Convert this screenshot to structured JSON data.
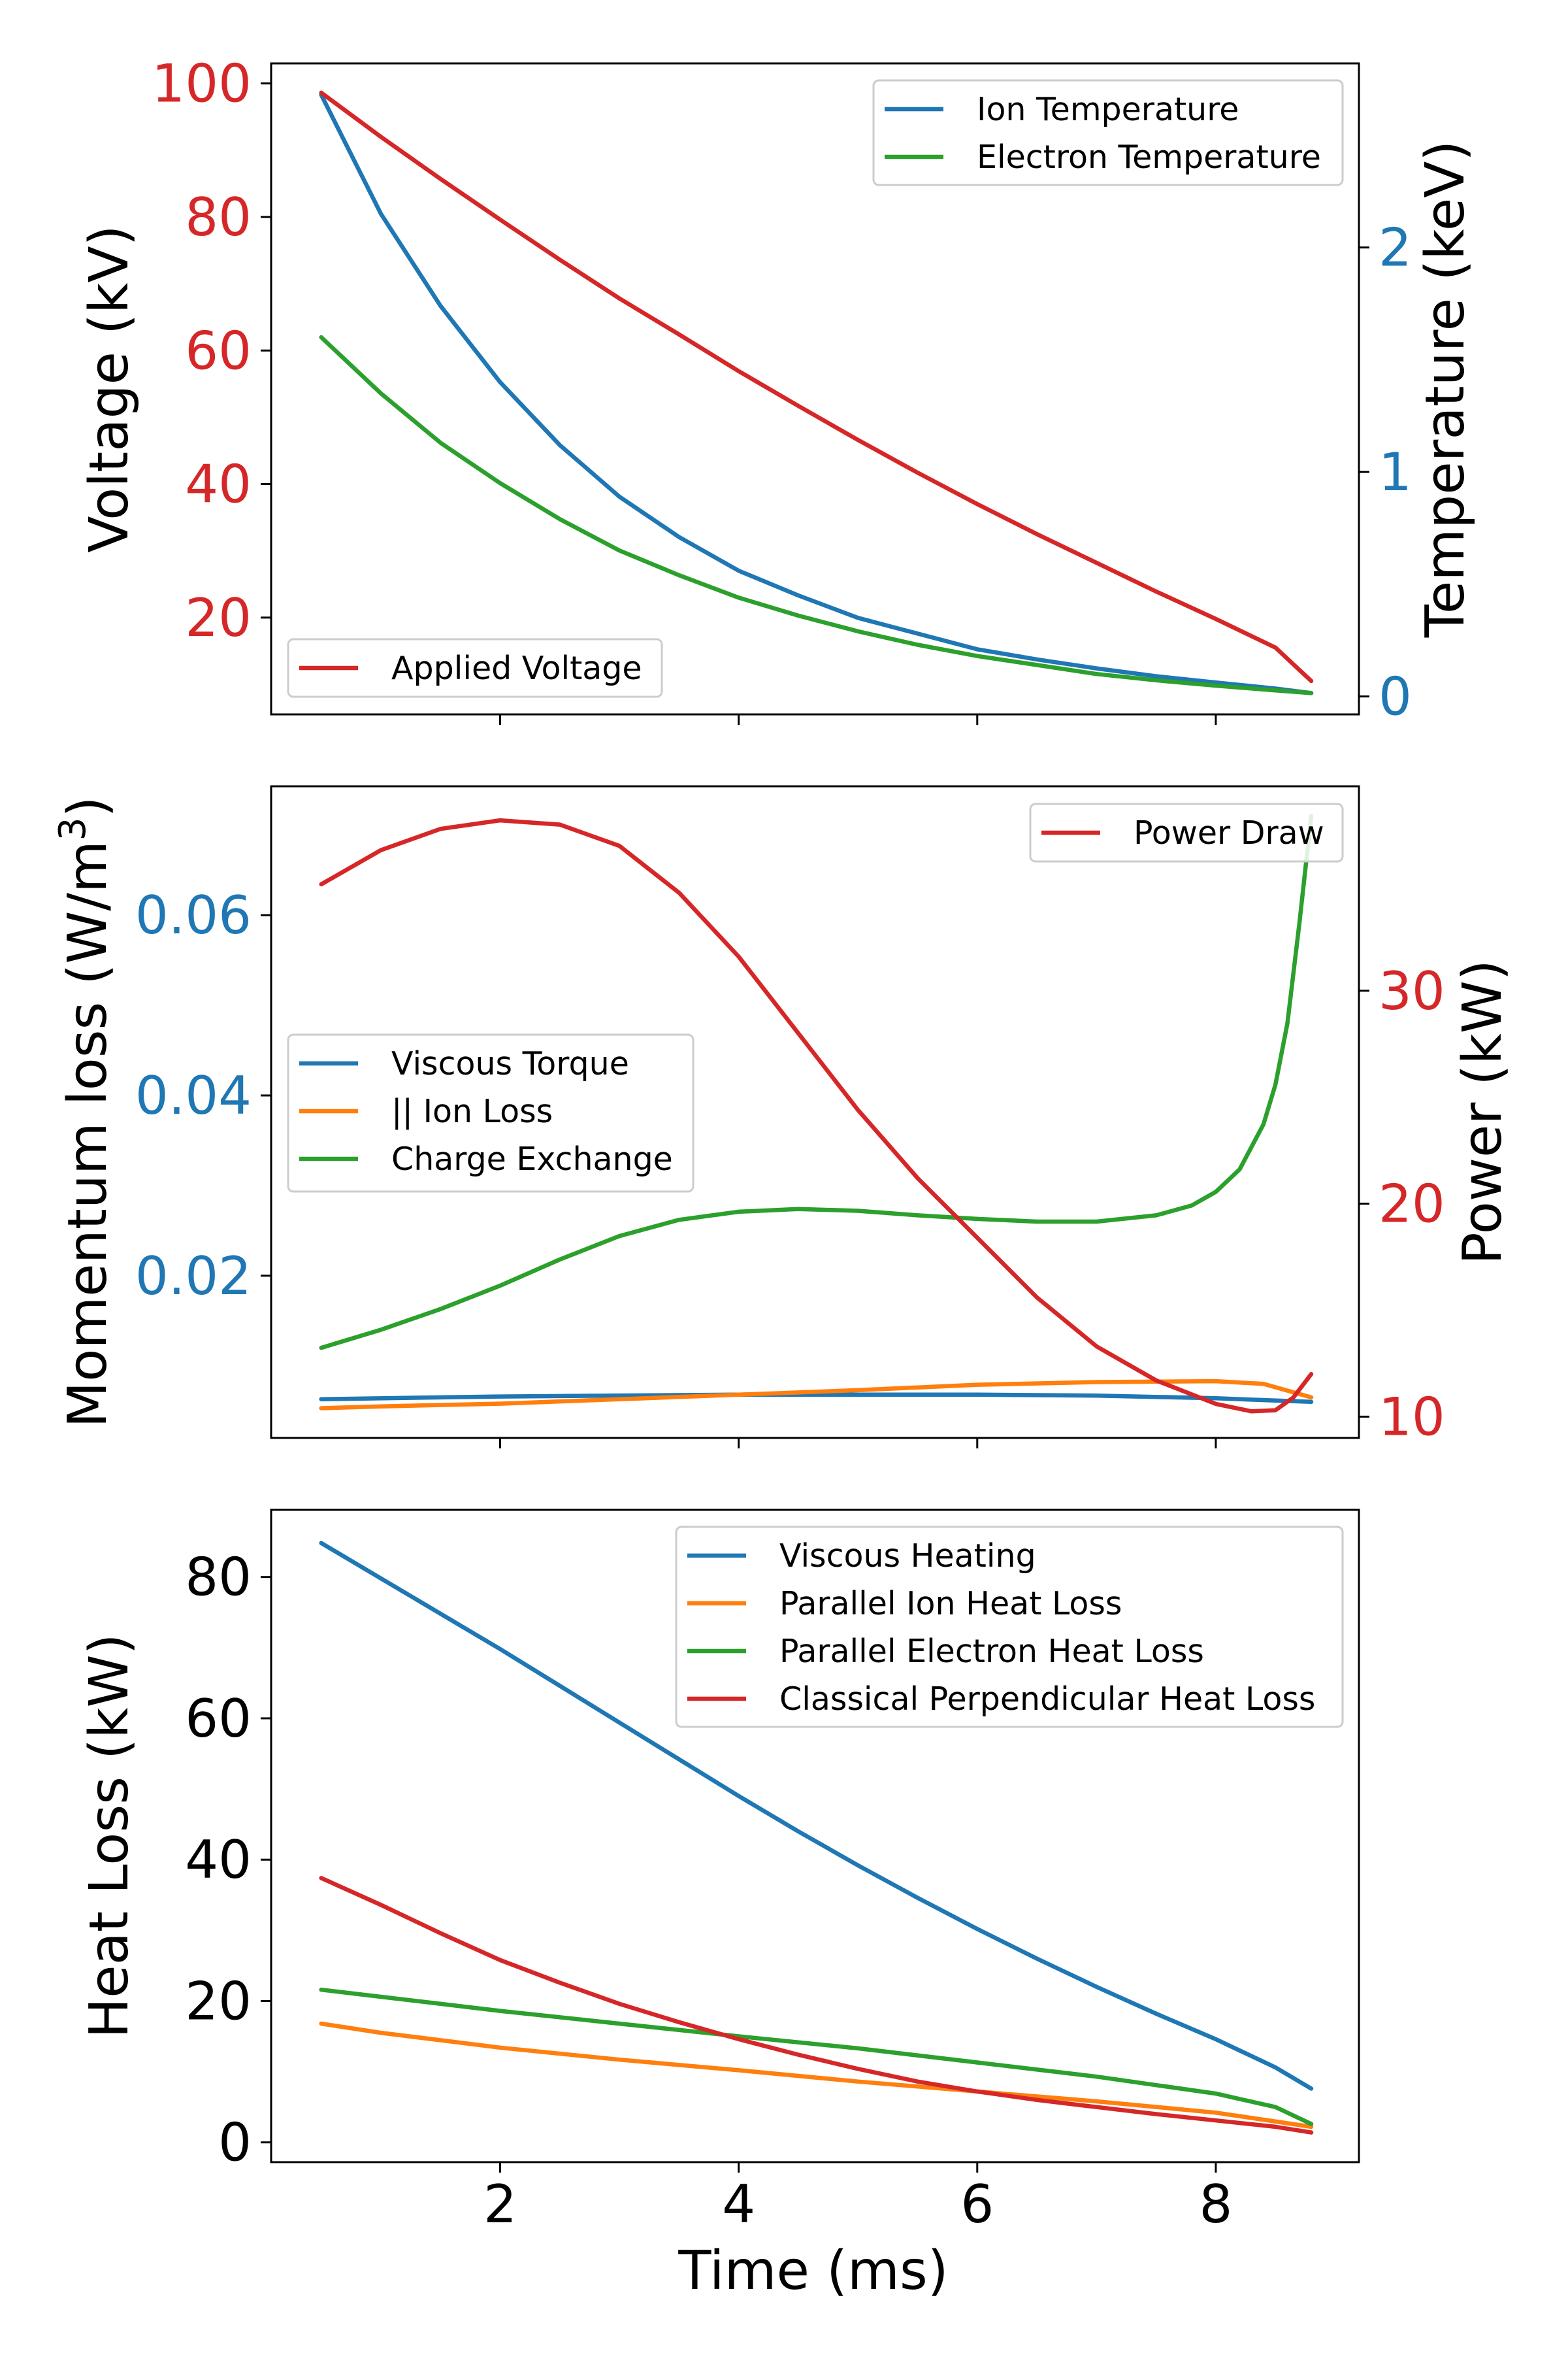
{
  "figure": {
    "xlabel": "Time (ms)",
    "xticks": [
      2,
      4,
      6,
      8
    ],
    "xlim": [
      0.08,
      9.2
    ]
  },
  "colors": {
    "blue": "#1f77b4",
    "orange": "#ff7f0e",
    "green": "#2ca02c",
    "red": "#d62728",
    "black": "#000000"
  },
  "chart_data": [
    {
      "type": "line",
      "left_axis": {
        "label": "Voltage (kV)",
        "ticks": [
          20,
          40,
          60,
          80,
          100
        ],
        "ylim": [
          5.5,
          103
        ],
        "tick_color": "red"
      },
      "right_axis": {
        "label": "Temperature (keV)",
        "ticks": [
          0,
          1,
          2
        ],
        "ylim": [
          -0.08,
          2.82
        ],
        "tick_color": "blue"
      },
      "legends": [
        {
          "position": "upper-right",
          "entries": [
            "Ion Temperature",
            "Electron Temperature"
          ]
        },
        {
          "position": "lower-left",
          "entries": [
            "Applied Voltage"
          ]
        }
      ],
      "series": [
        {
          "name": "Ion Temperature",
          "axis": "right",
          "color": "blue",
          "x": [
            0.5,
            1,
            1.5,
            2,
            2.5,
            3,
            3.5,
            4,
            4.5,
            5,
            5.5,
            6,
            6.5,
            7,
            7.5,
            8,
            8.5,
            8.8
          ],
          "y": [
            2.68,
            2.15,
            1.74,
            1.4,
            1.12,
            0.89,
            0.71,
            0.56,
            0.45,
            0.35,
            0.28,
            0.21,
            0.165,
            0.125,
            0.09,
            0.062,
            0.035,
            0.015
          ]
        },
        {
          "name": "Electron Temperature",
          "axis": "right",
          "color": "green",
          "x": [
            0.5,
            1,
            1.5,
            2,
            2.5,
            3,
            3.5,
            4,
            4.5,
            5,
            5.5,
            6,
            6.5,
            7,
            7.5,
            8,
            8.5,
            8.8
          ],
          "y": [
            1.6,
            1.35,
            1.13,
            0.95,
            0.79,
            0.65,
            0.54,
            0.44,
            0.36,
            0.29,
            0.23,
            0.18,
            0.14,
            0.1,
            0.072,
            0.048,
            0.027,
            0.015
          ]
        },
        {
          "name": "Applied Voltage",
          "axis": "left",
          "color": "red",
          "x": [
            0.5,
            1,
            1.5,
            2,
            2.5,
            3,
            3.5,
            4,
            4.5,
            5,
            5.5,
            6,
            6.5,
            7,
            7.5,
            8,
            8.5,
            8.8
          ],
          "y": [
            98.6,
            92.0,
            85.7,
            79.6,
            73.6,
            67.8,
            62.4,
            56.9,
            51.7,
            46.6,
            41.7,
            37.0,
            32.5,
            28.2,
            23.9,
            19.8,
            15.5,
            10.5
          ]
        }
      ]
    },
    {
      "type": "line",
      "left_axis": {
        "label": "Momentum loss (W/m",
        "label_sup": "3",
        "label_end": ")",
        "ticks": [
          0.02,
          0.04,
          0.06
        ],
        "ticks_text": [
          "0.02",
          "0.04",
          "0.06"
        ],
        "ylim": [
          0.002,
          0.0743
        ],
        "tick_color": "blue"
      },
      "right_axis": {
        "label": "Power (kW)",
        "ticks": [
          10,
          20,
          30
        ],
        "ylim": [
          9.0,
          39.6
        ],
        "tick_color": "red"
      },
      "legends": [
        {
          "position": "upper-right",
          "entries": [
            "Power Draw"
          ]
        },
        {
          "position": "center-left",
          "entries": [
            "Viscous Torque",
            "|| Ion Loss",
            "Charge Exchange"
          ]
        }
      ],
      "series": [
        {
          "name": "Viscous Torque",
          "axis": "left",
          "color": "blue",
          "x": [
            0.5,
            2,
            4,
            5,
            6,
            7,
            8,
            8.8
          ],
          "y": [
            0.0063,
            0.0066,
            0.0068,
            0.0068,
            0.0068,
            0.0067,
            0.0064,
            0.006
          ]
        },
        {
          "name": "|| Ion Loss",
          "axis": "left",
          "color": "orange",
          "x": [
            0.5,
            1,
            2,
            3,
            4,
            5,
            6,
            7,
            8,
            8.4,
            8.8
          ],
          "y": [
            0.0053,
            0.0055,
            0.0058,
            0.0063,
            0.0068,
            0.0073,
            0.0079,
            0.0082,
            0.0083,
            0.008,
            0.0065
          ]
        },
        {
          "name": "Charge Exchange",
          "axis": "left",
          "color": "green",
          "x": [
            0.5,
            1,
            1.5,
            2,
            2.5,
            3,
            3.5,
            4,
            4.5,
            5,
            5.5,
            6,
            6.5,
            7,
            7.5,
            7.8,
            8,
            8.2,
            8.4,
            8.5,
            8.6,
            8.7,
            8.8
          ],
          "y": [
            0.012,
            0.014,
            0.0163,
            0.0189,
            0.0218,
            0.0244,
            0.0262,
            0.0271,
            0.0274,
            0.0272,
            0.0267,
            0.0263,
            0.026,
            0.026,
            0.0267,
            0.0278,
            0.0293,
            0.0318,
            0.0368,
            0.0412,
            0.048,
            0.059,
            0.071
          ]
        },
        {
          "name": "Power Draw",
          "axis": "right",
          "color": "red",
          "x": [
            0.5,
            1,
            1.5,
            2,
            2.5,
            3,
            3.5,
            4,
            4.5,
            5,
            5.5,
            6,
            6.5,
            7,
            7.5,
            8,
            8.3,
            8.5,
            8.65,
            8.8
          ],
          "y": [
            35.0,
            36.6,
            37.6,
            38.0,
            37.8,
            36.8,
            34.6,
            31.6,
            28.0,
            24.4,
            21.2,
            18.4,
            15.6,
            13.3,
            11.7,
            10.6,
            10.25,
            10.3,
            10.9,
            12.0
          ]
        }
      ]
    },
    {
      "type": "line",
      "left_axis": {
        "label": "Heat Loss (kW)",
        "ticks": [
          0,
          20,
          40,
          60,
          80
        ],
        "ylim": [
          -2.8,
          89.5
        ],
        "tick_color": "black"
      },
      "legends": [
        {
          "position": "upper-right",
          "entries": [
            "Viscous Heating",
            "Parallel Ion Heat Loss",
            "Parallel Electron Heat Loss",
            "Classical Perpendicular Heat Loss"
          ]
        }
      ],
      "series": [
        {
          "name": "Viscous Heating",
          "color": "blue",
          "x": [
            0.5,
            1,
            1.5,
            2,
            2.5,
            3,
            3.5,
            4,
            4.5,
            5,
            5.5,
            6,
            6.5,
            7,
            7.5,
            8,
            8.5,
            8.8
          ],
          "y": [
            84.8,
            79.8,
            74.8,
            69.8,
            64.6,
            59.4,
            54.2,
            49.0,
            44.0,
            39.2,
            34.6,
            30.2,
            26.0,
            22.0,
            18.2,
            14.6,
            10.6,
            7.6
          ]
        },
        {
          "name": "Parallel Ion Heat Loss",
          "color": "orange",
          "x": [
            0.5,
            1,
            2,
            3,
            4,
            5,
            6,
            7,
            8,
            8.8
          ],
          "y": [
            16.8,
            15.5,
            13.4,
            11.7,
            10.2,
            8.6,
            7.2,
            5.8,
            4.2,
            2.2
          ]
        },
        {
          "name": "Parallel Electron Heat Loss",
          "color": "green",
          "x": [
            0.5,
            1,
            2,
            3,
            4,
            5,
            6,
            7,
            8,
            8.5,
            8.8
          ],
          "y": [
            21.6,
            20.6,
            18.6,
            16.8,
            15.0,
            13.3,
            11.3,
            9.3,
            6.9,
            5.0,
            2.6
          ]
        },
        {
          "name": "Classical Perpendicular Heat Loss",
          "color": "red",
          "x": [
            0.5,
            1,
            1.5,
            2,
            2.5,
            3,
            3.5,
            4,
            4.5,
            5,
            5.5,
            6,
            6.5,
            7,
            7.5,
            8,
            8.5,
            8.8
          ],
          "y": [
            37.4,
            33.6,
            29.6,
            25.8,
            22.6,
            19.6,
            17.0,
            14.6,
            12.4,
            10.4,
            8.6,
            7.2,
            6.0,
            5.0,
            4.0,
            3.1,
            2.2,
            1.4
          ]
        }
      ]
    }
  ]
}
